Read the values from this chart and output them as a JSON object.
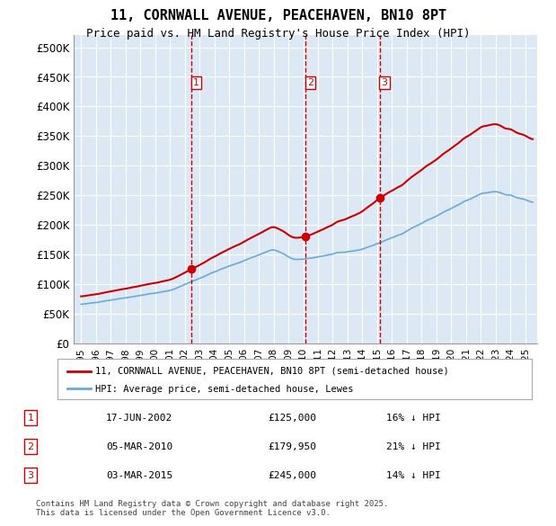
{
  "title": "11, CORNWALL AVENUE, PEACEHAVEN, BN10 8PT",
  "subtitle": "Price paid vs. HM Land Registry's House Price Index (HPI)",
  "ylabel": "",
  "ylim": [
    0,
    520000
  ],
  "yticks": [
    0,
    50000,
    100000,
    150000,
    200000,
    250000,
    300000,
    350000,
    400000,
    450000,
    500000
  ],
  "ytick_labels": [
    "£0",
    "£50K",
    "£100K",
    "£150K",
    "£200K",
    "£250K",
    "£300K",
    "£350K",
    "£400K",
    "£450K",
    "£500K"
  ],
  "bg_color": "#dce9f5",
  "plot_bg": "#dce9f5",
  "hpi_color": "#6aa9d8",
  "price_color": "#cc0000",
  "sale_marker_color": "#cc0000",
  "dashed_line_color": "#cc0000",
  "sales": [
    {
      "num": 1,
      "date_label": "17-JUN-2002",
      "x_year": 2002.46,
      "price": 125000,
      "note": "16% ↓ HPI"
    },
    {
      "num": 2,
      "date_label": "05-MAR-2010",
      "x_year": 2010.17,
      "price": 179950,
      "note": "21% ↓ HPI"
    },
    {
      "num": 3,
      "date_label": "03-MAR-2015",
      "x_year": 2015.17,
      "price": 245000,
      "note": "14% ↓ HPI"
    }
  ],
  "legend_entries": [
    "11, CORNWALL AVENUE, PEACEHAVEN, BN10 8PT (semi-detached house)",
    "HPI: Average price, semi-detached house, Lewes"
  ],
  "footnote": "Contains HM Land Registry data © Crown copyright and database right 2025.\nThis data is licensed under the Open Government Licence v3.0.",
  "xtick_years": [
    1995,
    1996,
    1997,
    1998,
    1999,
    2000,
    2001,
    2002,
    2003,
    2004,
    2005,
    2006,
    2007,
    2008,
    2009,
    2010,
    2011,
    2012,
    2013,
    2014,
    2015,
    2016,
    2017,
    2018,
    2019,
    2020,
    2021,
    2022,
    2023,
    2024,
    2025
  ]
}
